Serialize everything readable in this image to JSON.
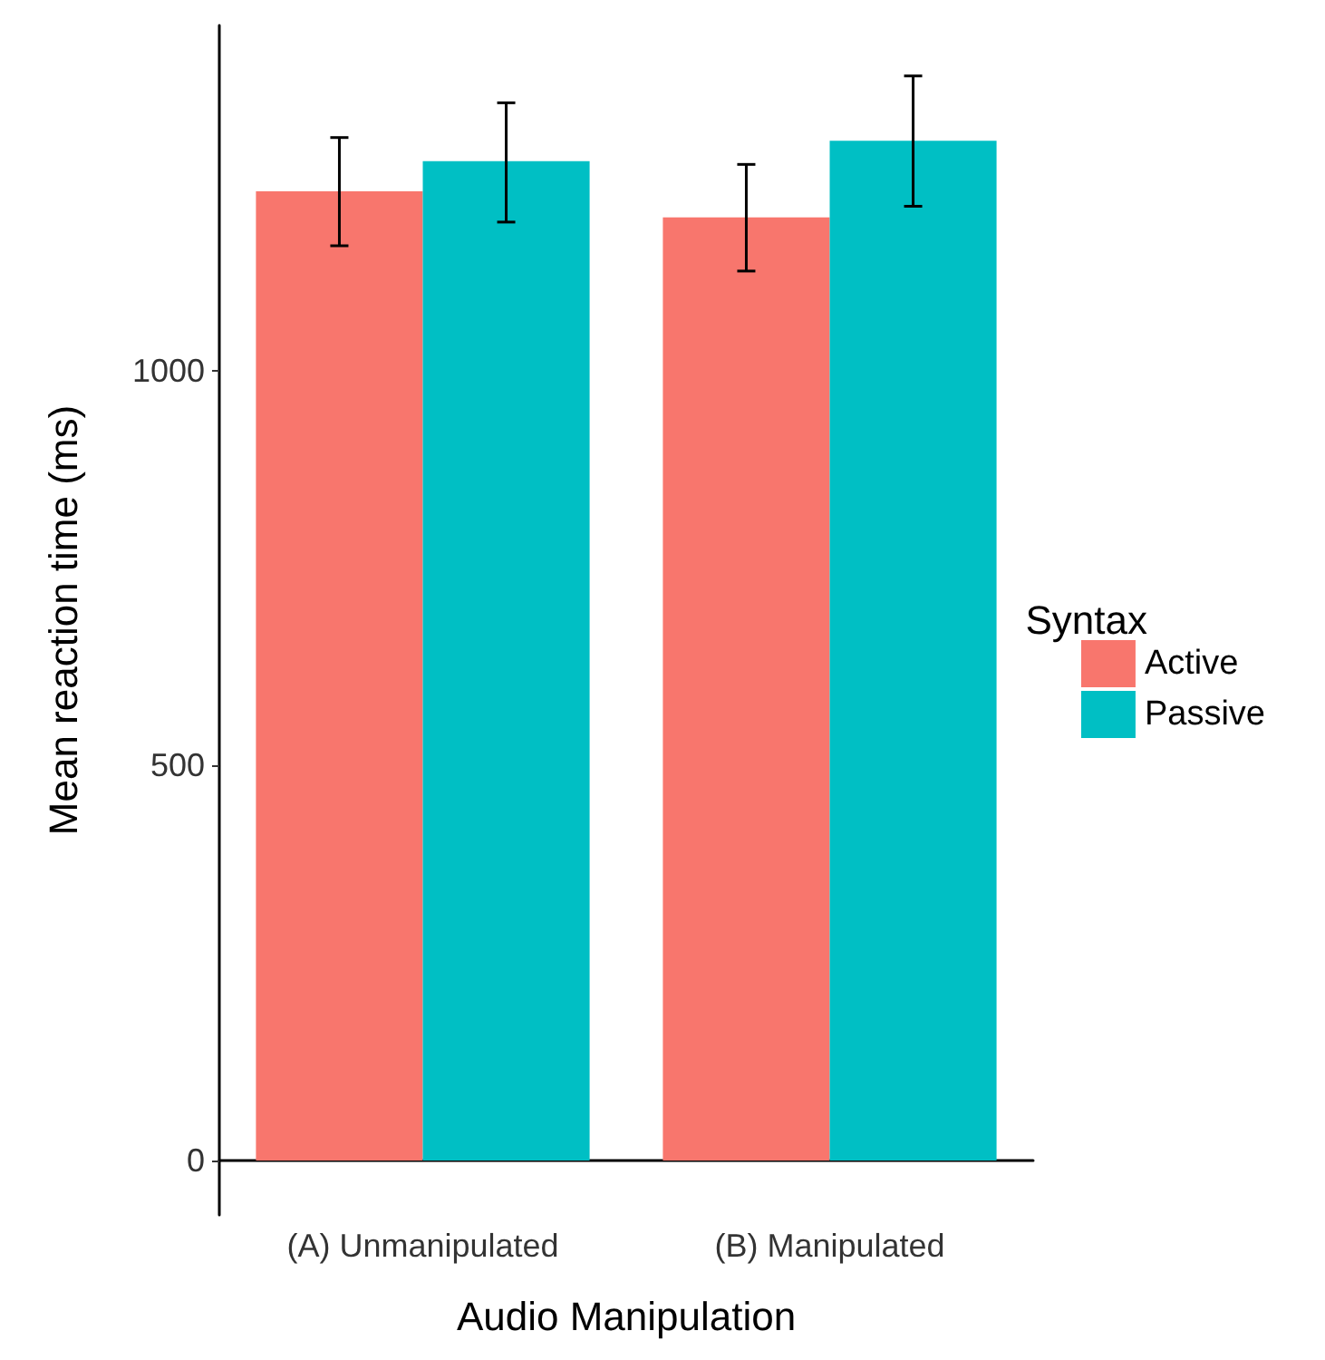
{
  "chart_data": {
    "type": "bar",
    "xlabel": "Audio Manipulation",
    "ylabel": "Mean reaction time (ms)",
    "legend_title": "Syntax",
    "categories": [
      "(A) Unmanipulated",
      "(B) Manipulated"
    ],
    "series": [
      {
        "name": "Active",
        "color": "#f8766d",
        "values": [
          1227,
          1194
        ],
        "errors": [
          [
            1158,
            1295
          ],
          [
            1126,
            1261
          ]
        ]
      },
      {
        "name": "Passive",
        "color": "#00bfc4",
        "values": [
          1265,
          1291
        ],
        "errors": [
          [
            1188,
            1339
          ],
          [
            1208,
            1373
          ]
        ]
      }
    ],
    "ylim": [
      -69,
      1437
    ],
    "yticks": [
      0,
      500,
      1000
    ],
    "grid": false,
    "legend": "right"
  }
}
